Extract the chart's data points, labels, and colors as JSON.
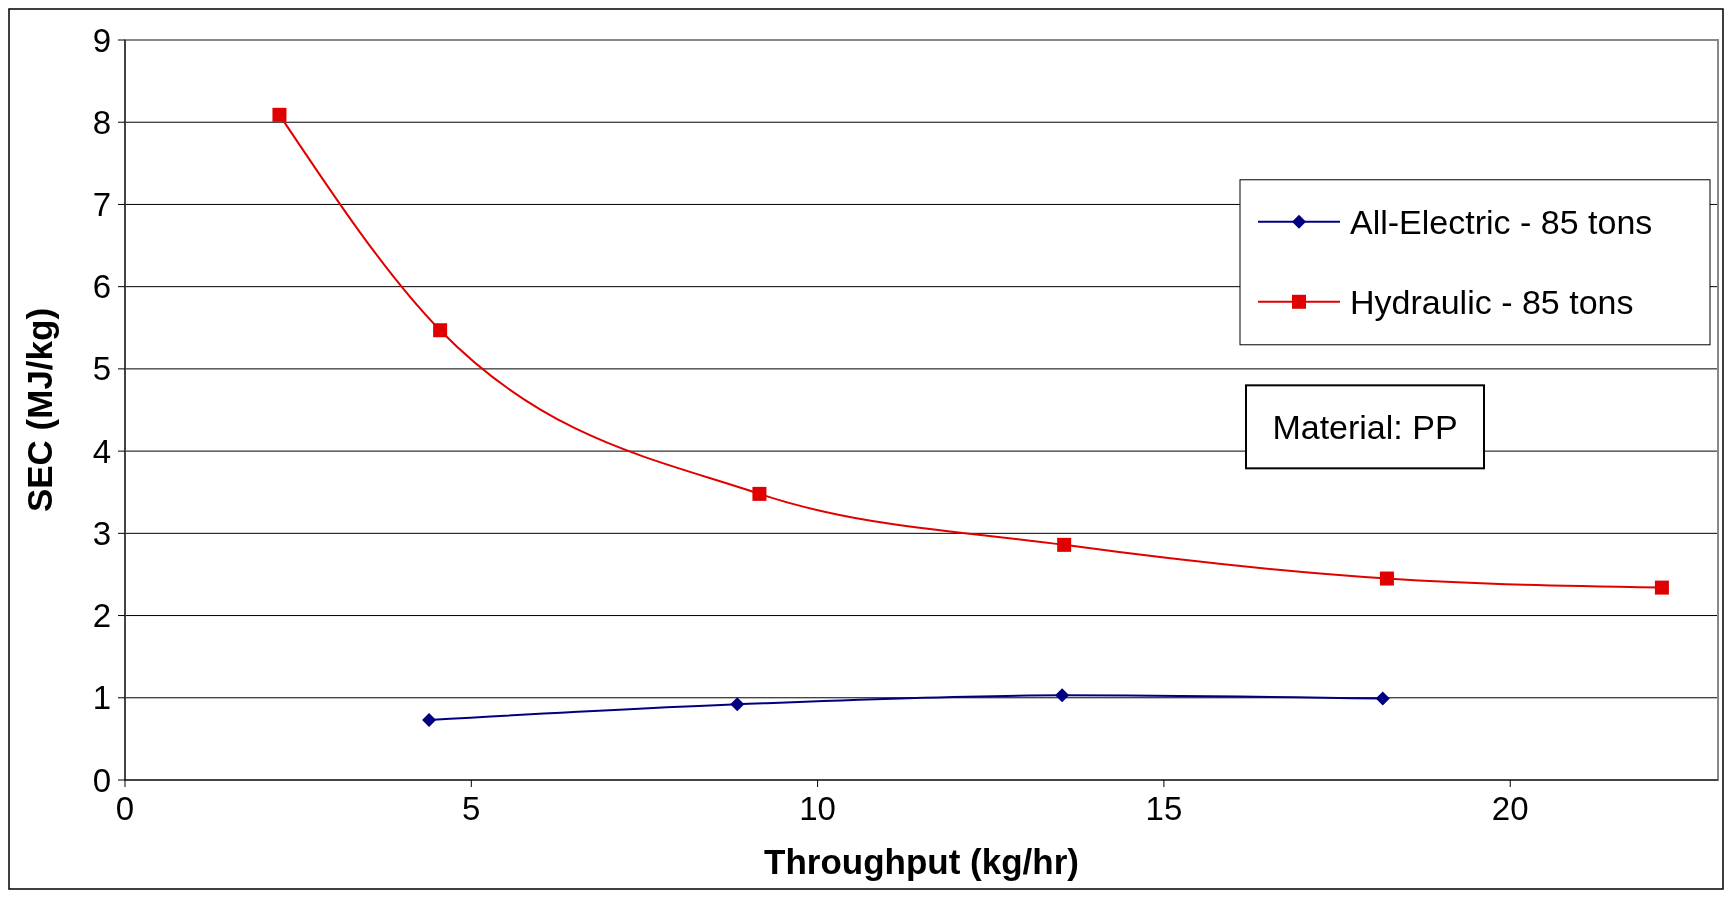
{
  "chart_data": {
    "type": "line",
    "xlabel": "Throughput (kg/hr)",
    "ylabel": "SEC (MJ/kg)",
    "xlim": [
      0,
      23
    ],
    "xticks": [
      0,
      5,
      10,
      15,
      20
    ],
    "ylim": [
      0,
      9
    ],
    "yticks": [
      0,
      1,
      2,
      3,
      4,
      5,
      6,
      7,
      8,
      9
    ],
    "grid": "y",
    "legend": "top right",
    "line_style": "solid",
    "annotations": [
      "Material: PP"
    ],
    "series": [
      {
        "name": "All-Electric - 85 tons",
        "color": "#000080",
        "marker": "diamond",
        "x": [
          4.39,
          8.84,
          13.53,
          18.16
        ],
        "values": [
          0.73,
          0.92,
          1.03,
          0.99
        ]
      },
      {
        "name": "Hydraulic - 85 tons",
        "color": "#e00000",
        "marker": "square",
        "x": [
          2.23,
          4.55,
          9.16,
          13.56,
          18.22,
          22.19
        ],
        "values": [
          8.09,
          5.47,
          3.48,
          2.86,
          2.45,
          2.34
        ]
      }
    ]
  }
}
